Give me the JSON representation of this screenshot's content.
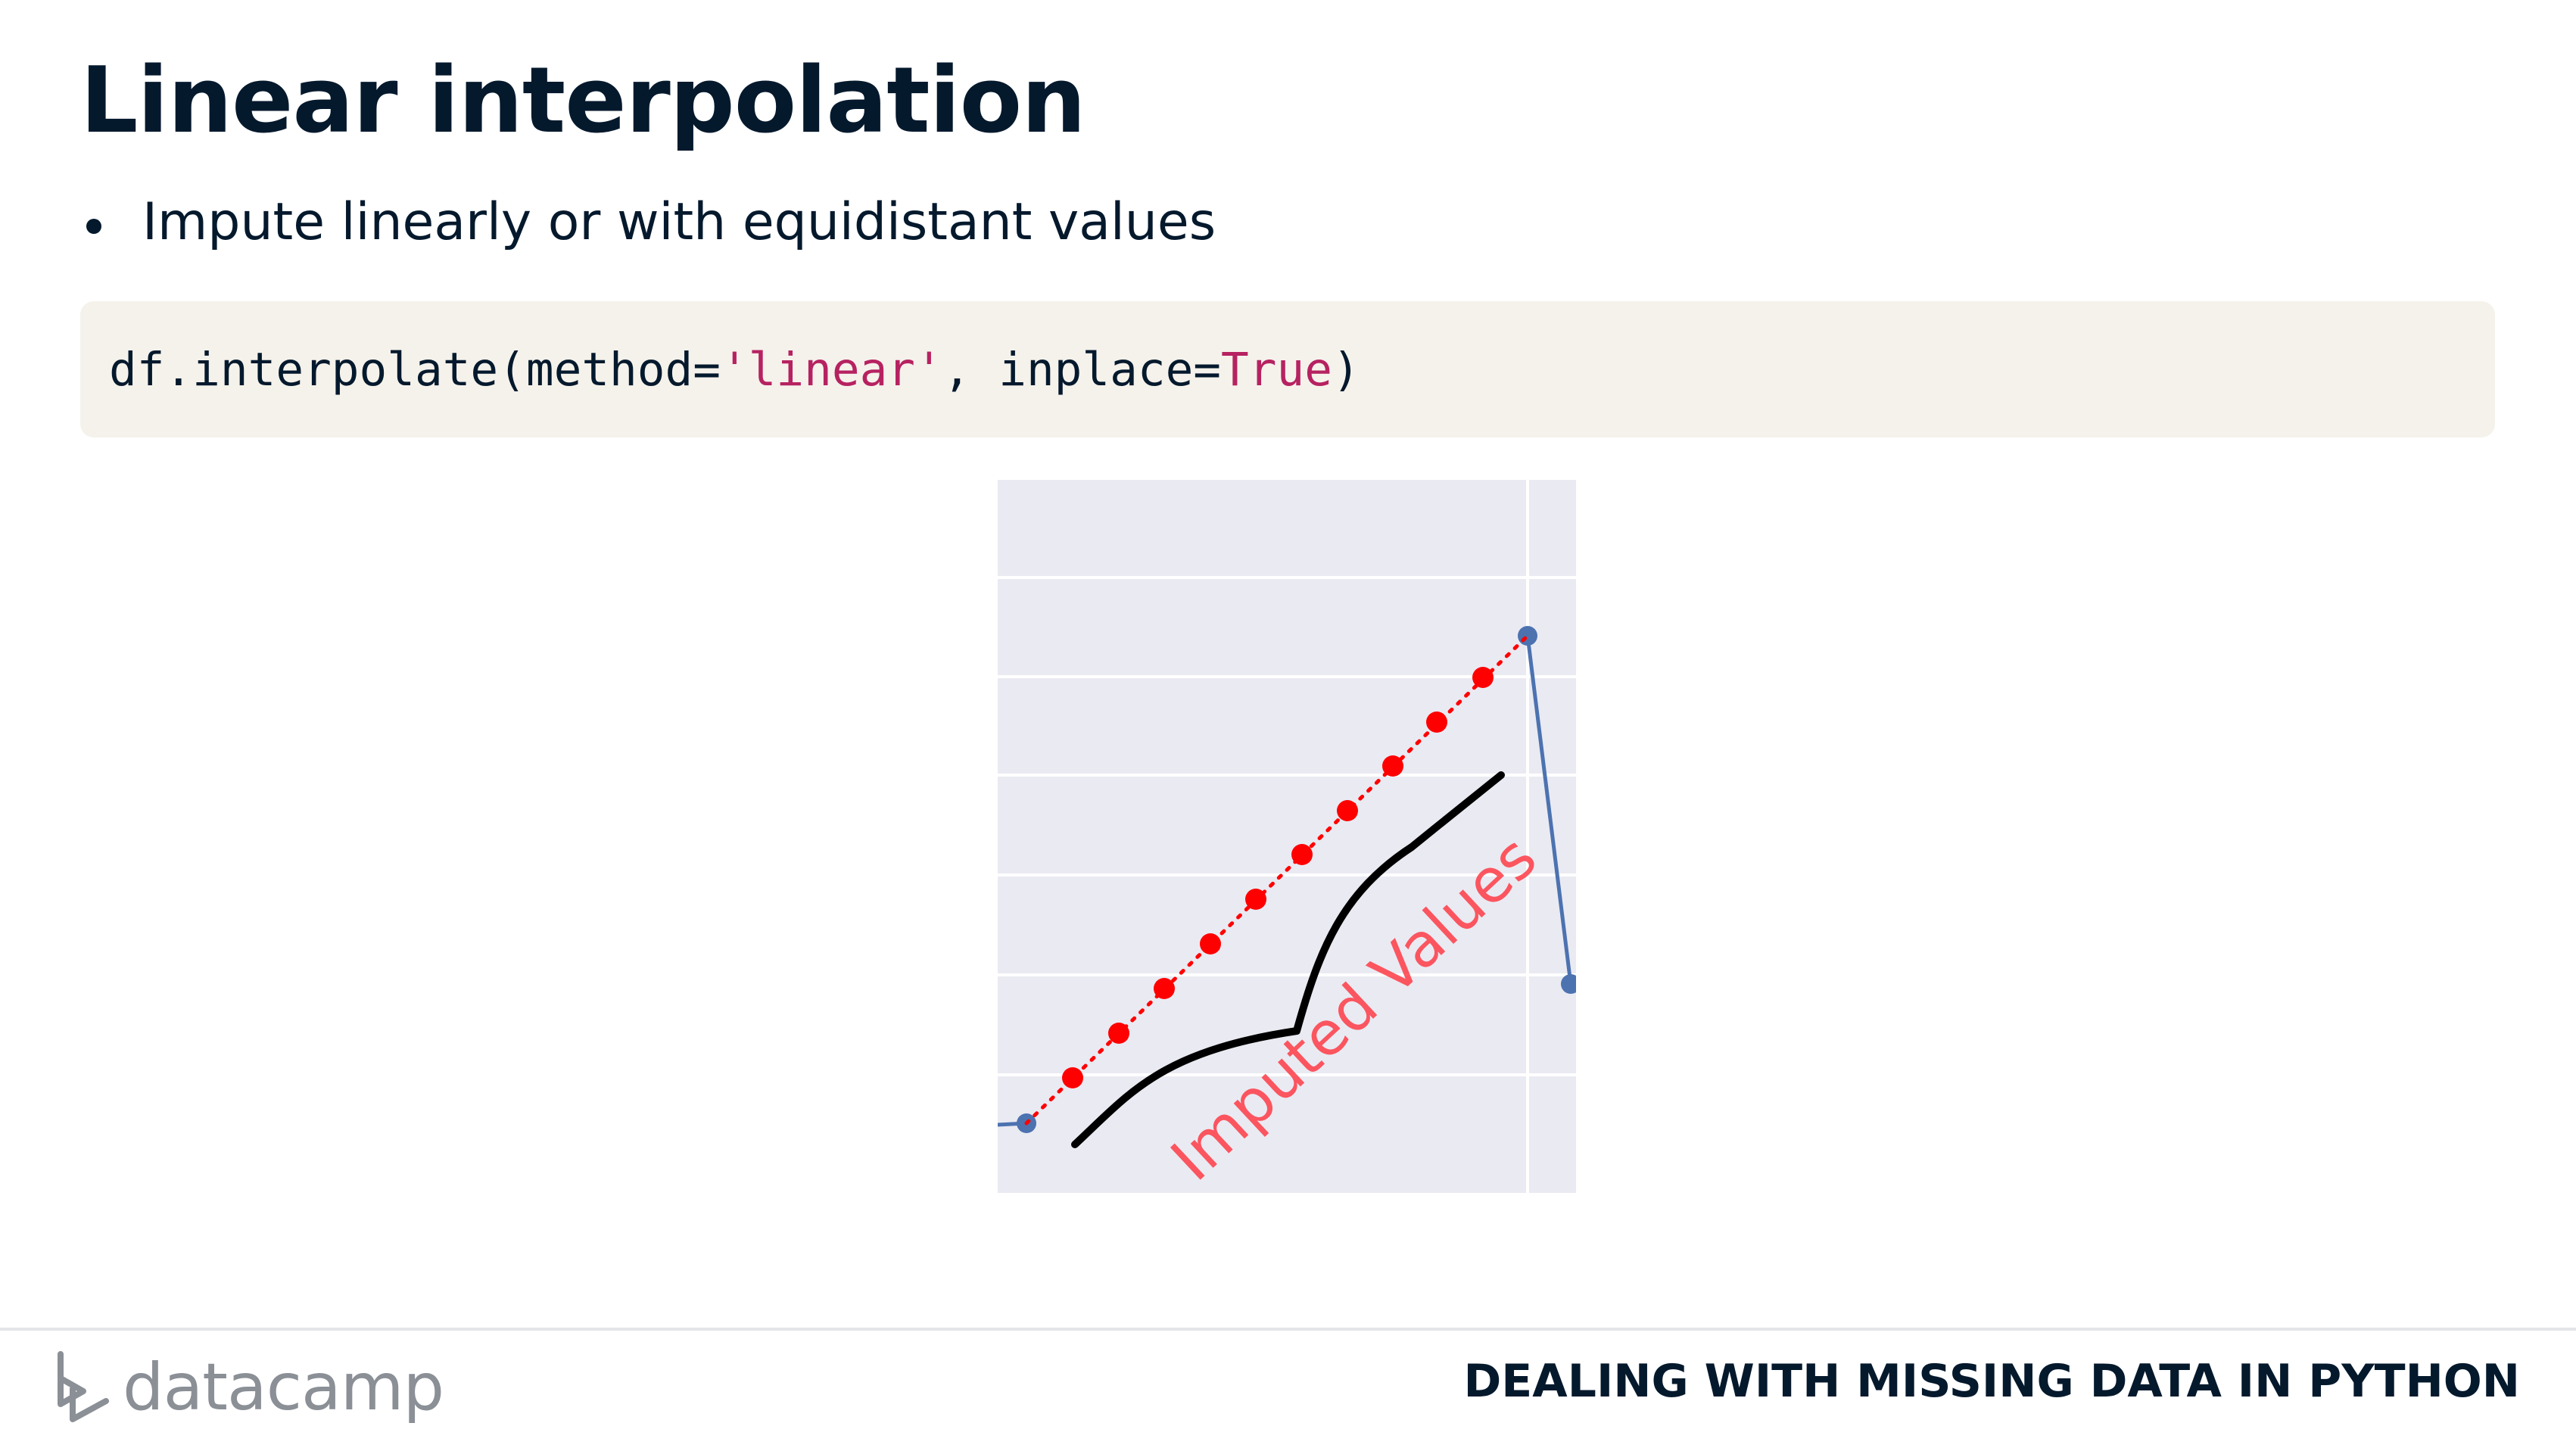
{
  "slide": {
    "title": "Linear interpolation",
    "bullets": [
      "Impute linearly or with equidistant values"
    ]
  },
  "code": {
    "prefix": "df.interpolate(method=",
    "method_value": "'linear'",
    "middle": ", inplace=",
    "inplace_value": "True",
    "suffix": ")"
  },
  "figure": {
    "annotation": "Imputed Values",
    "colors": {
      "background": "#eaeaf2",
      "gridline": "#ffffff",
      "observed_series": "#4c72b0",
      "imputed_points": "#ff0000",
      "annotation_text": "#ff3c46",
      "arrow_stroke": "#000000"
    }
  },
  "footer": {
    "brand": "datacamp",
    "course": "DEALING WITH MISSING DATA IN PYTHON"
  }
}
